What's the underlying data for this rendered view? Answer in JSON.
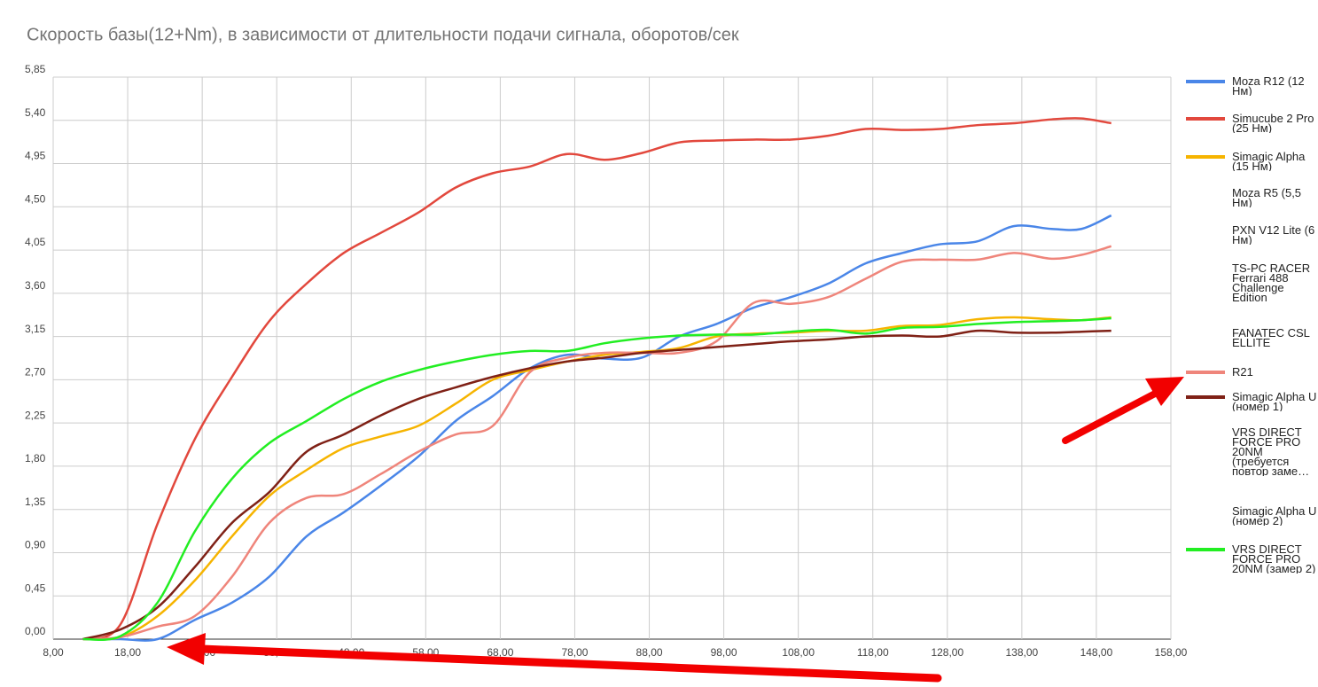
{
  "chart_data": {
    "type": "line",
    "title": "Скорость базы(12+Nm), в зависимости от длительности подачи сигнала, оборотов/сек",
    "x": [
      12,
      17,
      22,
      27,
      32,
      37,
      42,
      47,
      52,
      57,
      62,
      67,
      72,
      77,
      82,
      87,
      92,
      97,
      102,
      107,
      112,
      117,
      122,
      127,
      132,
      137,
      142,
      146,
      150
    ],
    "xlim": [
      8,
      158
    ],
    "xticks": [
      {
        "value": 8,
        "label": "8,00"
      },
      {
        "value": 18,
        "label": "18,00"
      },
      {
        "value": 28,
        "label": "28,00"
      },
      {
        "value": 38,
        "label": "38,00"
      },
      {
        "value": 48,
        "label": "48,00"
      },
      {
        "value": 58,
        "label": "58,00"
      },
      {
        "value": 68,
        "label": "68,00"
      },
      {
        "value": 78,
        "label": "78,00"
      },
      {
        "value": 88,
        "label": "88,00"
      },
      {
        "value": 98,
        "label": "98,00"
      },
      {
        "value": 108,
        "label": "108,00"
      },
      {
        "value": 118,
        "label": "118,00"
      },
      {
        "value": 128,
        "label": "128,00"
      },
      {
        "value": 138,
        "label": "138,00"
      },
      {
        "value": 148,
        "label": "148,00"
      },
      {
        "value": 158,
        "label": "158,00"
      }
    ],
    "ylim": [
      0,
      5.85
    ],
    "yticks": [
      {
        "value": 0,
        "label": "0,00"
      },
      {
        "value": 0.45,
        "label": "0,45"
      },
      {
        "value": 0.9,
        "label": "0,90"
      },
      {
        "value": 1.35,
        "label": "1,35"
      },
      {
        "value": 1.8,
        "label": "1,80"
      },
      {
        "value": 2.25,
        "label": "2,25"
      },
      {
        "value": 2.7,
        "label": "2,70"
      },
      {
        "value": 3.15,
        "label": "3,15"
      },
      {
        "value": 3.6,
        "label": "3,60"
      },
      {
        "value": 4.05,
        "label": "4,05"
      },
      {
        "value": 4.5,
        "label": "4,50"
      },
      {
        "value": 4.95,
        "label": "4,95"
      },
      {
        "value": 5.4,
        "label": "5,40"
      },
      {
        "value": 5.85,
        "label": "5,85"
      }
    ],
    "grid": true,
    "legend": "right",
    "series": [
      {
        "name": "Moza R12 (12 Нм)",
        "color": "#4a86e8",
        "values": [
          0,
          0,
          0,
          0.2,
          0.38,
          0.65,
          1.07,
          1.32,
          1.6,
          1.9,
          2.27,
          2.53,
          2.82,
          2.96,
          2.92,
          2.93,
          3.15,
          3.28,
          3.45,
          3.56,
          3.7,
          3.91,
          4.02,
          4.11,
          4.14,
          4.3,
          4.27,
          4.27,
          4.41
        ]
      },
      {
        "name": "Simucube 2 Pro (25 Нм)",
        "color": "#e2483d",
        "values": [
          0,
          0.15,
          1.2,
          2.08,
          2.73,
          3.31,
          3.7,
          4.02,
          4.23,
          4.44,
          4.7,
          4.85,
          4.92,
          5.05,
          4.99,
          5.06,
          5.17,
          5.19,
          5.2,
          5.2,
          5.24,
          5.31,
          5.3,
          5.31,
          5.35,
          5.37,
          5.41,
          5.42,
          5.37
        ]
      },
      {
        "name": "Simagic Alpha (15 Нм)",
        "color": "#f6b400",
        "values": [
          0,
          0.02,
          0.24,
          0.61,
          1.07,
          1.49,
          1.76,
          1.99,
          2.11,
          2.22,
          2.45,
          2.7,
          2.8,
          2.89,
          2.96,
          2.99,
          3.03,
          3.15,
          3.18,
          3.19,
          3.21,
          3.21,
          3.26,
          3.27,
          3.33,
          3.35,
          3.33,
          3.32,
          3.35
        ]
      },
      {
        "name": "Moza R5 (5,5 Нм)",
        "values": [
          null,
          null,
          null,
          null,
          null,
          null,
          null,
          null,
          null,
          null,
          null,
          null,
          null,
          null,
          null,
          null,
          null,
          null,
          null,
          null,
          null,
          null,
          null,
          null,
          null,
          null,
          null,
          null,
          null
        ]
      },
      {
        "name": "PXN V12 Lite (6 Нм)",
        "values": [
          null,
          null,
          null,
          null,
          null,
          null,
          null,
          null,
          null,
          null,
          null,
          null,
          null,
          null,
          null,
          null,
          null,
          null,
          null,
          null,
          null,
          null,
          null,
          null,
          null,
          null,
          null,
          null,
          null
        ]
      },
      {
        "name": "TS-PC RACER Ferrari 488 Challenge Edition",
        "values": [
          null,
          null,
          null,
          null,
          null,
          null,
          null,
          null,
          null,
          null,
          null,
          null,
          null,
          null,
          null,
          null,
          null,
          null,
          null,
          null,
          null,
          null,
          null,
          null,
          null,
          null,
          null,
          null,
          null
        ]
      },
      {
        "name": "FANATEC CSL ELLITE",
        "values": [
          null,
          null,
          null,
          null,
          null,
          null,
          null,
          null,
          null,
          null,
          null,
          null,
          null,
          null,
          null,
          null,
          null,
          null,
          null,
          null,
          null,
          null,
          null,
          null,
          null,
          null,
          null,
          null,
          null
        ]
      },
      {
        "name": "R21",
        "color": "#ef857b",
        "values": [
          0,
          0.02,
          0.13,
          0.24,
          0.65,
          1.21,
          1.47,
          1.51,
          1.72,
          1.95,
          2.13,
          2.22,
          2.78,
          2.93,
          2.98,
          2.98,
          2.98,
          3.1,
          3.5,
          3.49,
          3.56,
          3.75,
          3.93,
          3.95,
          3.95,
          4.02,
          3.96,
          4,
          4.09
        ]
      },
      {
        "name": "Simagic Alpha U (номер 1)",
        "color": "#7f2116",
        "values": [
          0,
          0.1,
          0.33,
          0.75,
          1.21,
          1.53,
          1.95,
          2.13,
          2.33,
          2.5,
          2.62,
          2.73,
          2.82,
          2.89,
          2.93,
          2.98,
          3.01,
          3.04,
          3.07,
          3.1,
          3.12,
          3.15,
          3.16,
          3.15,
          3.21,
          3.19,
          3.19,
          3.2,
          3.21
        ]
      },
      {
        "name": "VRS DIRECT FORCE PRO 20NM (требуется повтор заме…",
        "values": [
          null,
          null,
          null,
          null,
          null,
          null,
          null,
          null,
          null,
          null,
          null,
          null,
          null,
          null,
          null,
          null,
          null,
          null,
          null,
          null,
          null,
          null,
          null,
          null,
          null,
          null,
          null,
          null,
          null
        ]
      },
      {
        "name": "Simagic Alpha U (номер 2)",
        "values": [
          null,
          null,
          null,
          null,
          null,
          null,
          null,
          null,
          null,
          null,
          null,
          null,
          null,
          null,
          null,
          null,
          null,
          null,
          null,
          null,
          null,
          null,
          null,
          null,
          null,
          null,
          null,
          null,
          null
        ]
      },
      {
        "name": "VRS DIRECT FORCE PRO 20NM (замер 2)",
        "color": "#22ee22",
        "values": [
          0,
          0.03,
          0.38,
          1.12,
          1.67,
          2.04,
          2.27,
          2.5,
          2.68,
          2.8,
          2.89,
          2.96,
          3,
          3,
          3.08,
          3.13,
          3.16,
          3.17,
          3.17,
          3.2,
          3.22,
          3.18,
          3.24,
          3.25,
          3.28,
          3.3,
          3.31,
          3.32,
          3.34
        ]
      }
    ]
  }
}
